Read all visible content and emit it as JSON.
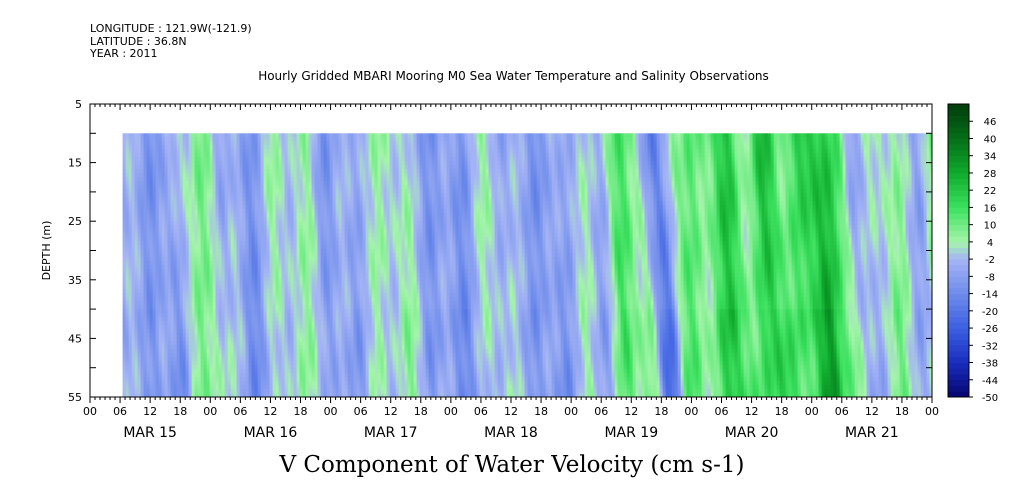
{
  "header": {
    "longitude": "LONGITUDE : 121.9W(-121.9)",
    "latitude": "LATITUDE : 36.8N",
    "year": "YEAR : 2011"
  },
  "chart_data": {
    "type": "heatmap",
    "title": "Hourly Gridded MBARI Mooring M0 Sea Water Temperature and Salinity Observations",
    "variable_label": "V Component of Water Velocity (cm s-1)",
    "ylabel": "DEPTH (m)",
    "ylim": [
      5,
      55
    ],
    "y_inverted": true,
    "y_ticks": [
      5,
      15,
      25,
      35,
      45,
      55
    ],
    "data_depth_range": [
      10,
      55
    ],
    "x_hour_labels": [
      "00",
      "06",
      "12",
      "18",
      "00",
      "06",
      "12",
      "18",
      "00",
      "06",
      "12",
      "18",
      "00",
      "06",
      "12",
      "18",
      "00",
      "06",
      "12",
      "18",
      "00",
      "06",
      "12",
      "18",
      "00",
      "06",
      "12",
      "18",
      "00"
    ],
    "x_day_labels": [
      "MAR 15",
      "MAR 16",
      "MAR 17",
      "MAR 18",
      "MAR 19",
      "MAR 20",
      "MAR 21"
    ],
    "x_range_hours": [
      0,
      168
    ],
    "data_start_hour": 6.5,
    "data_end_hour": 170,
    "color_levels": [
      "46",
      "40",
      "34",
      "28",
      "22",
      "16",
      "10",
      "4",
      "-2",
      "-8",
      "-14",
      "-20",
      "-26",
      "-32",
      "-38",
      "-44",
      "-50"
    ],
    "color_range": [
      -50,
      52
    ],
    "column_profile": [
      {
        "hour": 8,
        "v": -6
      },
      {
        "hour": 10,
        "v": -8
      },
      {
        "hour": 14,
        "v": -10
      },
      {
        "hour": 18,
        "v": 4
      },
      {
        "hour": 22,
        "v": 6
      },
      {
        "hour": 26,
        "v": -4
      },
      {
        "hour": 30,
        "v": -10
      },
      {
        "hour": 36,
        "v": 2
      },
      {
        "hour": 42,
        "v": 2
      },
      {
        "hour": 46,
        "v": -8
      },
      {
        "hour": 50,
        "v": -6
      },
      {
        "hour": 54,
        "v": 0
      },
      {
        "hour": 60,
        "v": 4
      },
      {
        "hour": 66,
        "v": -8
      },
      {
        "hour": 72,
        "v": -10
      },
      {
        "hour": 78,
        "v": 2
      },
      {
        "hour": 84,
        "v": -6
      },
      {
        "hour": 90,
        "v": -10
      },
      {
        "hour": 96,
        "v": 0
      },
      {
        "hour": 100,
        "v": -4
      },
      {
        "hour": 104,
        "v": 12
      },
      {
        "hour": 108,
        "v": 8
      },
      {
        "hour": 112,
        "v": -20
      },
      {
        "hour": 116,
        "v": 10
      },
      {
        "hour": 120,
        "v": 8
      },
      {
        "hour": 126,
        "v": 20
      },
      {
        "hour": 130,
        "v": 8
      },
      {
        "hour": 134,
        "v": 22
      },
      {
        "hour": 138,
        "v": 10
      },
      {
        "hour": 144,
        "v": 26
      },
      {
        "hour": 148,
        "v": 14
      },
      {
        "hour": 152,
        "v": -6
      },
      {
        "hour": 158,
        "v": 6
      },
      {
        "hour": 164,
        "v": -4
      },
      {
        "hour": 168,
        "v": 8
      }
    ]
  }
}
